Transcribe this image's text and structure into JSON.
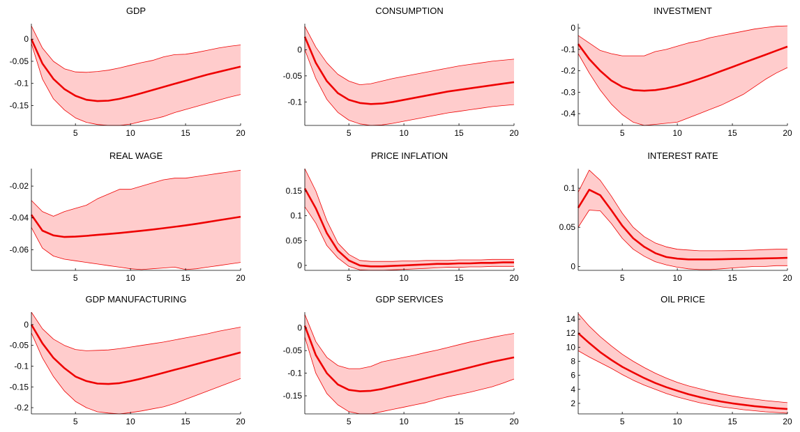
{
  "chart_data": [
    {
      "type": "area",
      "title": "GDP",
      "xlim": [
        1,
        20
      ],
      "ylim": [
        -0.195,
        0.035
      ],
      "xticks": [
        5,
        10,
        15,
        20
      ],
      "xtick_labels": [
        "5",
        "10",
        "15",
        "20"
      ],
      "yticks": [
        0,
        -0.05,
        -0.1,
        -0.15
      ],
      "ytick_labels": [
        "0",
        "-0.05",
        "-0.1",
        "-0.15"
      ],
      "x": [
        1,
        2,
        3,
        4,
        5,
        6,
        7,
        8,
        9,
        10,
        11,
        12,
        13,
        14,
        15,
        16,
        17,
        18,
        19,
        20
      ],
      "series": [
        {
          "role": "median",
          "values": [
            0.0,
            -0.055,
            -0.09,
            -0.113,
            -0.128,
            -0.137,
            -0.14,
            -0.139,
            -0.135,
            -0.129,
            -0.122,
            -0.115,
            -0.108,
            -0.101,
            -0.094,
            -0.087,
            -0.08,
            -0.074,
            -0.068,
            -0.062
          ]
        },
        {
          "role": "upper",
          "values": [
            0.03,
            -0.02,
            -0.05,
            -0.067,
            -0.074,
            -0.075,
            -0.073,
            -0.07,
            -0.065,
            -0.059,
            -0.053,
            -0.048,
            -0.04,
            -0.035,
            -0.034,
            -0.03,
            -0.025,
            -0.02,
            -0.016,
            -0.013
          ]
        },
        {
          "role": "lower",
          "values": [
            -0.01,
            -0.09,
            -0.135,
            -0.16,
            -0.178,
            -0.188,
            -0.193,
            -0.195,
            -0.195,
            -0.192,
            -0.186,
            -0.181,
            -0.175,
            -0.166,
            -0.159,
            -0.152,
            -0.145,
            -0.138,
            -0.131,
            -0.125
          ]
        }
      ]
    },
    {
      "type": "area",
      "title": "CONSUMPTION",
      "xlim": [
        1,
        20
      ],
      "ylim": [
        -0.145,
        0.05
      ],
      "xticks": [
        5,
        10,
        15,
        20
      ],
      "xtick_labels": [
        "5",
        "10",
        "15",
        "20"
      ],
      "yticks": [
        0,
        -0.05,
        -0.1
      ],
      "ytick_labels": [
        "0",
        "-0.05",
        "-0.1"
      ],
      "x": [
        1,
        2,
        3,
        4,
        5,
        6,
        7,
        8,
        9,
        10,
        11,
        12,
        13,
        14,
        15,
        16,
        17,
        18,
        19,
        20
      ],
      "series": [
        {
          "role": "median",
          "values": [
            0.025,
            -0.025,
            -0.06,
            -0.083,
            -0.096,
            -0.102,
            -0.104,
            -0.103,
            -0.1,
            -0.096,
            -0.092,
            -0.088,
            -0.084,
            -0.08,
            -0.077,
            -0.074,
            -0.071,
            -0.068,
            -0.065,
            -0.062
          ]
        },
        {
          "role": "upper",
          "values": [
            0.045,
            0.005,
            -0.025,
            -0.047,
            -0.06,
            -0.067,
            -0.065,
            -0.06,
            -0.055,
            -0.051,
            -0.047,
            -0.043,
            -0.039,
            -0.035,
            -0.031,
            -0.028,
            -0.025,
            -0.022,
            -0.02,
            -0.018
          ]
        },
        {
          "role": "lower",
          "values": [
            0.0,
            -0.055,
            -0.095,
            -0.12,
            -0.135,
            -0.142,
            -0.145,
            -0.144,
            -0.141,
            -0.137,
            -0.133,
            -0.129,
            -0.125,
            -0.121,
            -0.118,
            -0.115,
            -0.112,
            -0.109,
            -0.107,
            -0.105
          ]
        }
      ]
    },
    {
      "type": "area",
      "title": "INVESTMENT",
      "xlim": [
        1,
        20
      ],
      "ylim": [
        -0.455,
        0.02
      ],
      "xticks": [
        5,
        10,
        15,
        20
      ],
      "xtick_labels": [
        "5",
        "10",
        "15",
        "20"
      ],
      "yticks": [
        0,
        -0.1,
        -0.2,
        -0.3,
        -0.4
      ],
      "ytick_labels": [
        "0",
        "-0.1",
        "-0.2",
        "-0.3",
        "-0.4"
      ],
      "x": [
        1,
        2,
        3,
        4,
        5,
        6,
        7,
        8,
        9,
        10,
        11,
        12,
        13,
        14,
        15,
        16,
        17,
        18,
        19,
        20
      ],
      "series": [
        {
          "role": "median",
          "values": [
            -0.075,
            -0.145,
            -0.2,
            -0.245,
            -0.275,
            -0.29,
            -0.293,
            -0.29,
            -0.282,
            -0.27,
            -0.255,
            -0.238,
            -0.22,
            -0.201,
            -0.182,
            -0.163,
            -0.144,
            -0.125,
            -0.106,
            -0.087
          ]
        },
        {
          "role": "upper",
          "values": [
            -0.035,
            -0.07,
            -0.105,
            -0.12,
            -0.13,
            -0.13,
            -0.13,
            -0.11,
            -0.1,
            -0.085,
            -0.07,
            -0.06,
            -0.045,
            -0.035,
            -0.025,
            -0.015,
            -0.005,
            0.002,
            0.008,
            0.01
          ]
        },
        {
          "role": "lower",
          "values": [
            -0.12,
            -0.21,
            -0.29,
            -0.355,
            -0.405,
            -0.44,
            -0.455,
            -0.45,
            -0.445,
            -0.44,
            -0.42,
            -0.4,
            -0.38,
            -0.36,
            -0.335,
            -0.31,
            -0.275,
            -0.24,
            -0.21,
            -0.185
          ]
        }
      ]
    },
    {
      "type": "area",
      "title": "REAL WAGE",
      "xlim": [
        1,
        20
      ],
      "ylim": [
        -0.073,
        -0.009
      ],
      "xticks": [
        5,
        10,
        15,
        20
      ],
      "xtick_labels": [
        "5",
        "10",
        "15",
        "20"
      ],
      "yticks": [
        -0.02,
        -0.04,
        -0.06
      ],
      "ytick_labels": [
        "-0.02",
        "-0.04",
        "-0.06"
      ],
      "x": [
        1,
        2,
        3,
        4,
        5,
        6,
        7,
        8,
        9,
        10,
        11,
        12,
        13,
        14,
        15,
        16,
        17,
        18,
        19,
        20
      ],
      "series": [
        {
          "role": "median",
          "values": [
            -0.038,
            -0.048,
            -0.051,
            -0.052,
            -0.0518,
            -0.0513,
            -0.0507,
            -0.0501,
            -0.0495,
            -0.0488,
            -0.0481,
            -0.0473,
            -0.0465,
            -0.0456,
            -0.0447,
            -0.0437,
            -0.0426,
            -0.0415,
            -0.0404,
            -0.0393
          ]
        },
        {
          "role": "upper",
          "values": [
            -0.029,
            -0.036,
            -0.039,
            -0.036,
            -0.034,
            -0.032,
            -0.028,
            -0.025,
            -0.022,
            -0.022,
            -0.02,
            -0.018,
            -0.016,
            -0.015,
            -0.015,
            -0.014,
            -0.013,
            -0.012,
            -0.011,
            -0.01
          ]
        },
        {
          "role": "lower",
          "values": [
            -0.046,
            -0.059,
            -0.064,
            -0.066,
            -0.067,
            -0.068,
            -0.069,
            -0.07,
            -0.071,
            -0.072,
            -0.0725,
            -0.072,
            -0.0715,
            -0.071,
            -0.0725,
            -0.072,
            -0.071,
            -0.07,
            -0.069,
            -0.068
          ]
        }
      ]
    },
    {
      "type": "area",
      "title": "PRICE INFLATION",
      "xlim": [
        1,
        20
      ],
      "ylim": [
        -0.01,
        0.195
      ],
      "xticks": [
        5,
        10,
        15,
        20
      ],
      "xtick_labels": [
        "5",
        "10",
        "15",
        "20"
      ],
      "yticks": [
        0,
        0.05,
        0.1,
        0.15
      ],
      "ytick_labels": [
        "0",
        "0.05",
        "0.1",
        "0.15"
      ],
      "x": [
        1,
        2,
        3,
        4,
        5,
        6,
        7,
        8,
        9,
        10,
        11,
        12,
        13,
        14,
        15,
        16,
        17,
        18,
        19,
        20
      ],
      "series": [
        {
          "role": "median",
          "values": [
            0.155,
            0.115,
            0.065,
            0.03,
            0.01,
            0.0,
            -0.002,
            -0.002,
            -0.001,
            0.0,
            0.001,
            0.002,
            0.003,
            0.003,
            0.004,
            0.004,
            0.005,
            0.005,
            0.006,
            0.006
          ]
        },
        {
          "role": "upper",
          "values": [
            0.195,
            0.15,
            0.09,
            0.045,
            0.022,
            0.01,
            0.008,
            0.008,
            0.008,
            0.009,
            0.009,
            0.01,
            0.01,
            0.01,
            0.011,
            0.011,
            0.011,
            0.012,
            0.012,
            0.012
          ]
        },
        {
          "role": "lower",
          "values": [
            0.118,
            0.085,
            0.04,
            0.015,
            -0.002,
            -0.009,
            -0.01,
            -0.01,
            -0.009,
            -0.008,
            -0.007,
            -0.006,
            -0.005,
            -0.004,
            -0.004,
            -0.003,
            -0.003,
            -0.002,
            -0.002,
            -0.002
          ]
        }
      ]
    },
    {
      "type": "area",
      "title": "INTEREST RATE",
      "xlim": [
        1,
        20
      ],
      "ylim": [
        -0.005,
        0.125
      ],
      "xticks": [
        5,
        10,
        15,
        20
      ],
      "xtick_labels": [
        "5",
        "10",
        "15",
        "20"
      ],
      "yticks": [
        0,
        0.05,
        0.1
      ],
      "ytick_labels": [
        "0",
        "0.05",
        "0.1"
      ],
      "x": [
        1,
        2,
        3,
        4,
        5,
        6,
        7,
        8,
        9,
        10,
        11,
        12,
        13,
        14,
        15,
        16,
        17,
        18,
        19,
        20
      ],
      "series": [
        {
          "role": "median",
          "values": [
            0.075,
            0.098,
            0.091,
            0.072,
            0.052,
            0.036,
            0.025,
            0.017,
            0.012,
            0.01,
            0.009,
            0.009,
            0.009,
            0.0092,
            0.0095,
            0.0098,
            0.01,
            0.0103,
            0.0106,
            0.011
          ]
        },
        {
          "role": "upper",
          "values": [
            0.095,
            0.123,
            0.11,
            0.09,
            0.068,
            0.05,
            0.038,
            0.03,
            0.025,
            0.022,
            0.021,
            0.02,
            0.02,
            0.02,
            0.0202,
            0.0205,
            0.021,
            0.0215,
            0.022,
            0.022
          ]
        },
        {
          "role": "lower",
          "values": [
            0.05,
            0.072,
            0.071,
            0.055,
            0.036,
            0.022,
            0.013,
            0.006,
            0.002,
            -0.001,
            -0.003,
            -0.004,
            -0.004,
            -0.003,
            -0.002,
            -0.001,
            0.0,
            0.0,
            0.001,
            0.001
          ]
        }
      ]
    },
    {
      "type": "area",
      "title": "GDP MANUFACTURING",
      "xlim": [
        1,
        20
      ],
      "ylim": [
        -0.215,
        0.03
      ],
      "xticks": [
        5,
        10,
        15,
        20
      ],
      "xtick_labels": [
        "5",
        "10",
        "15",
        "20"
      ],
      "yticks": [
        0,
        -0.05,
        -0.1,
        -0.15,
        -0.2
      ],
      "ytick_labels": [
        "0",
        "-0.05",
        "-0.1",
        "-0.15",
        "-0.2"
      ],
      "x": [
        1,
        2,
        3,
        4,
        5,
        6,
        7,
        8,
        9,
        10,
        11,
        12,
        13,
        14,
        15,
        16,
        17,
        18,
        19,
        20
      ],
      "series": [
        {
          "role": "median",
          "values": [
            0.0,
            -0.045,
            -0.08,
            -0.105,
            -0.125,
            -0.136,
            -0.142,
            -0.143,
            -0.141,
            -0.136,
            -0.13,
            -0.123,
            -0.116,
            -0.109,
            -0.102,
            -0.095,
            -0.088,
            -0.081,
            -0.074,
            -0.067
          ]
        },
        {
          "role": "upper",
          "values": [
            0.03,
            -0.01,
            -0.035,
            -0.05,
            -0.06,
            -0.063,
            -0.062,
            -0.061,
            -0.058,
            -0.054,
            -0.05,
            -0.046,
            -0.042,
            -0.037,
            -0.032,
            -0.027,
            -0.022,
            -0.016,
            -0.011,
            -0.006
          ]
        },
        {
          "role": "lower",
          "values": [
            -0.02,
            -0.08,
            -0.125,
            -0.16,
            -0.185,
            -0.2,
            -0.21,
            -0.213,
            -0.215,
            -0.212,
            -0.208,
            -0.203,
            -0.198,
            -0.19,
            -0.18,
            -0.17,
            -0.16,
            -0.15,
            -0.14,
            -0.13
          ]
        }
      ]
    },
    {
      "type": "area",
      "title": "GDP SERVICES",
      "xlim": [
        1,
        20
      ],
      "ylim": [
        -0.19,
        0.035
      ],
      "xticks": [
        5,
        10,
        15,
        20
      ],
      "xtick_labels": [
        "5",
        "10",
        "15",
        "20"
      ],
      "yticks": [
        0,
        -0.05,
        -0.1,
        -0.15
      ],
      "ytick_labels": [
        "0",
        "-0.05",
        "-0.1",
        "-0.15"
      ],
      "x": [
        1,
        2,
        3,
        4,
        5,
        6,
        7,
        8,
        9,
        10,
        11,
        12,
        13,
        14,
        15,
        16,
        17,
        18,
        19,
        20
      ],
      "series": [
        {
          "role": "median",
          "values": [
            0.005,
            -0.06,
            -0.1,
            -0.125,
            -0.137,
            -0.14,
            -0.139,
            -0.135,
            -0.129,
            -0.123,
            -0.117,
            -0.111,
            -0.105,
            -0.099,
            -0.093,
            -0.087,
            -0.081,
            -0.075,
            -0.07,
            -0.065
          ]
        },
        {
          "role": "upper",
          "values": [
            0.03,
            -0.03,
            -0.065,
            -0.083,
            -0.09,
            -0.09,
            -0.085,
            -0.075,
            -0.07,
            -0.065,
            -0.06,
            -0.054,
            -0.049,
            -0.043,
            -0.037,
            -0.031,
            -0.026,
            -0.021,
            -0.016,
            -0.012
          ]
        },
        {
          "role": "lower",
          "values": [
            -0.02,
            -0.1,
            -0.145,
            -0.17,
            -0.185,
            -0.19,
            -0.19,
            -0.185,
            -0.18,
            -0.175,
            -0.17,
            -0.165,
            -0.158,
            -0.152,
            -0.147,
            -0.142,
            -0.136,
            -0.13,
            -0.122,
            -0.113
          ]
        }
      ]
    },
    {
      "type": "area",
      "title": "OIL PRICE",
      "xlim": [
        1,
        20
      ],
      "ylim": [
        0.5,
        15
      ],
      "xticks": [
        5,
        10,
        15,
        20
      ],
      "xtick_labels": [
        "5",
        "10",
        "15",
        "20"
      ],
      "yticks": [
        2,
        4,
        6,
        8,
        10,
        12,
        14
      ],
      "ytick_labels": [
        "2",
        "4",
        "6",
        "8",
        "10",
        "12",
        "14"
      ],
      "x": [
        1,
        2,
        3,
        4,
        5,
        6,
        7,
        8,
        9,
        10,
        11,
        12,
        13,
        14,
        15,
        16,
        17,
        18,
        19,
        20
      ],
      "series": [
        {
          "role": "median",
          "values": [
            12.0,
            10.6,
            9.3,
            8.2,
            7.2,
            6.4,
            5.6,
            4.9,
            4.3,
            3.8,
            3.3,
            2.9,
            2.55,
            2.25,
            2.0,
            1.8,
            1.6,
            1.45,
            1.3,
            1.2
          ]
        },
        {
          "role": "upper",
          "values": [
            14.8,
            13.0,
            11.5,
            10.2,
            9.0,
            8.0,
            7.1,
            6.3,
            5.6,
            5.0,
            4.5,
            4.1,
            3.7,
            3.35,
            3.05,
            2.8,
            2.6,
            2.4,
            2.25,
            2.1
          ]
        },
        {
          "role": "lower",
          "values": [
            9.5,
            8.6,
            7.8,
            7.0,
            6.1,
            5.3,
            4.6,
            4.0,
            3.4,
            2.9,
            2.5,
            2.1,
            1.8,
            1.5,
            1.3,
            1.1,
            0.95,
            0.8,
            0.7,
            0.6
          ]
        }
      ]
    }
  ],
  "colors": {
    "median_line": "#ee0000",
    "band_edge": "#ee0000",
    "band_fill": "#ffcccc",
    "axis": "#000000"
  }
}
